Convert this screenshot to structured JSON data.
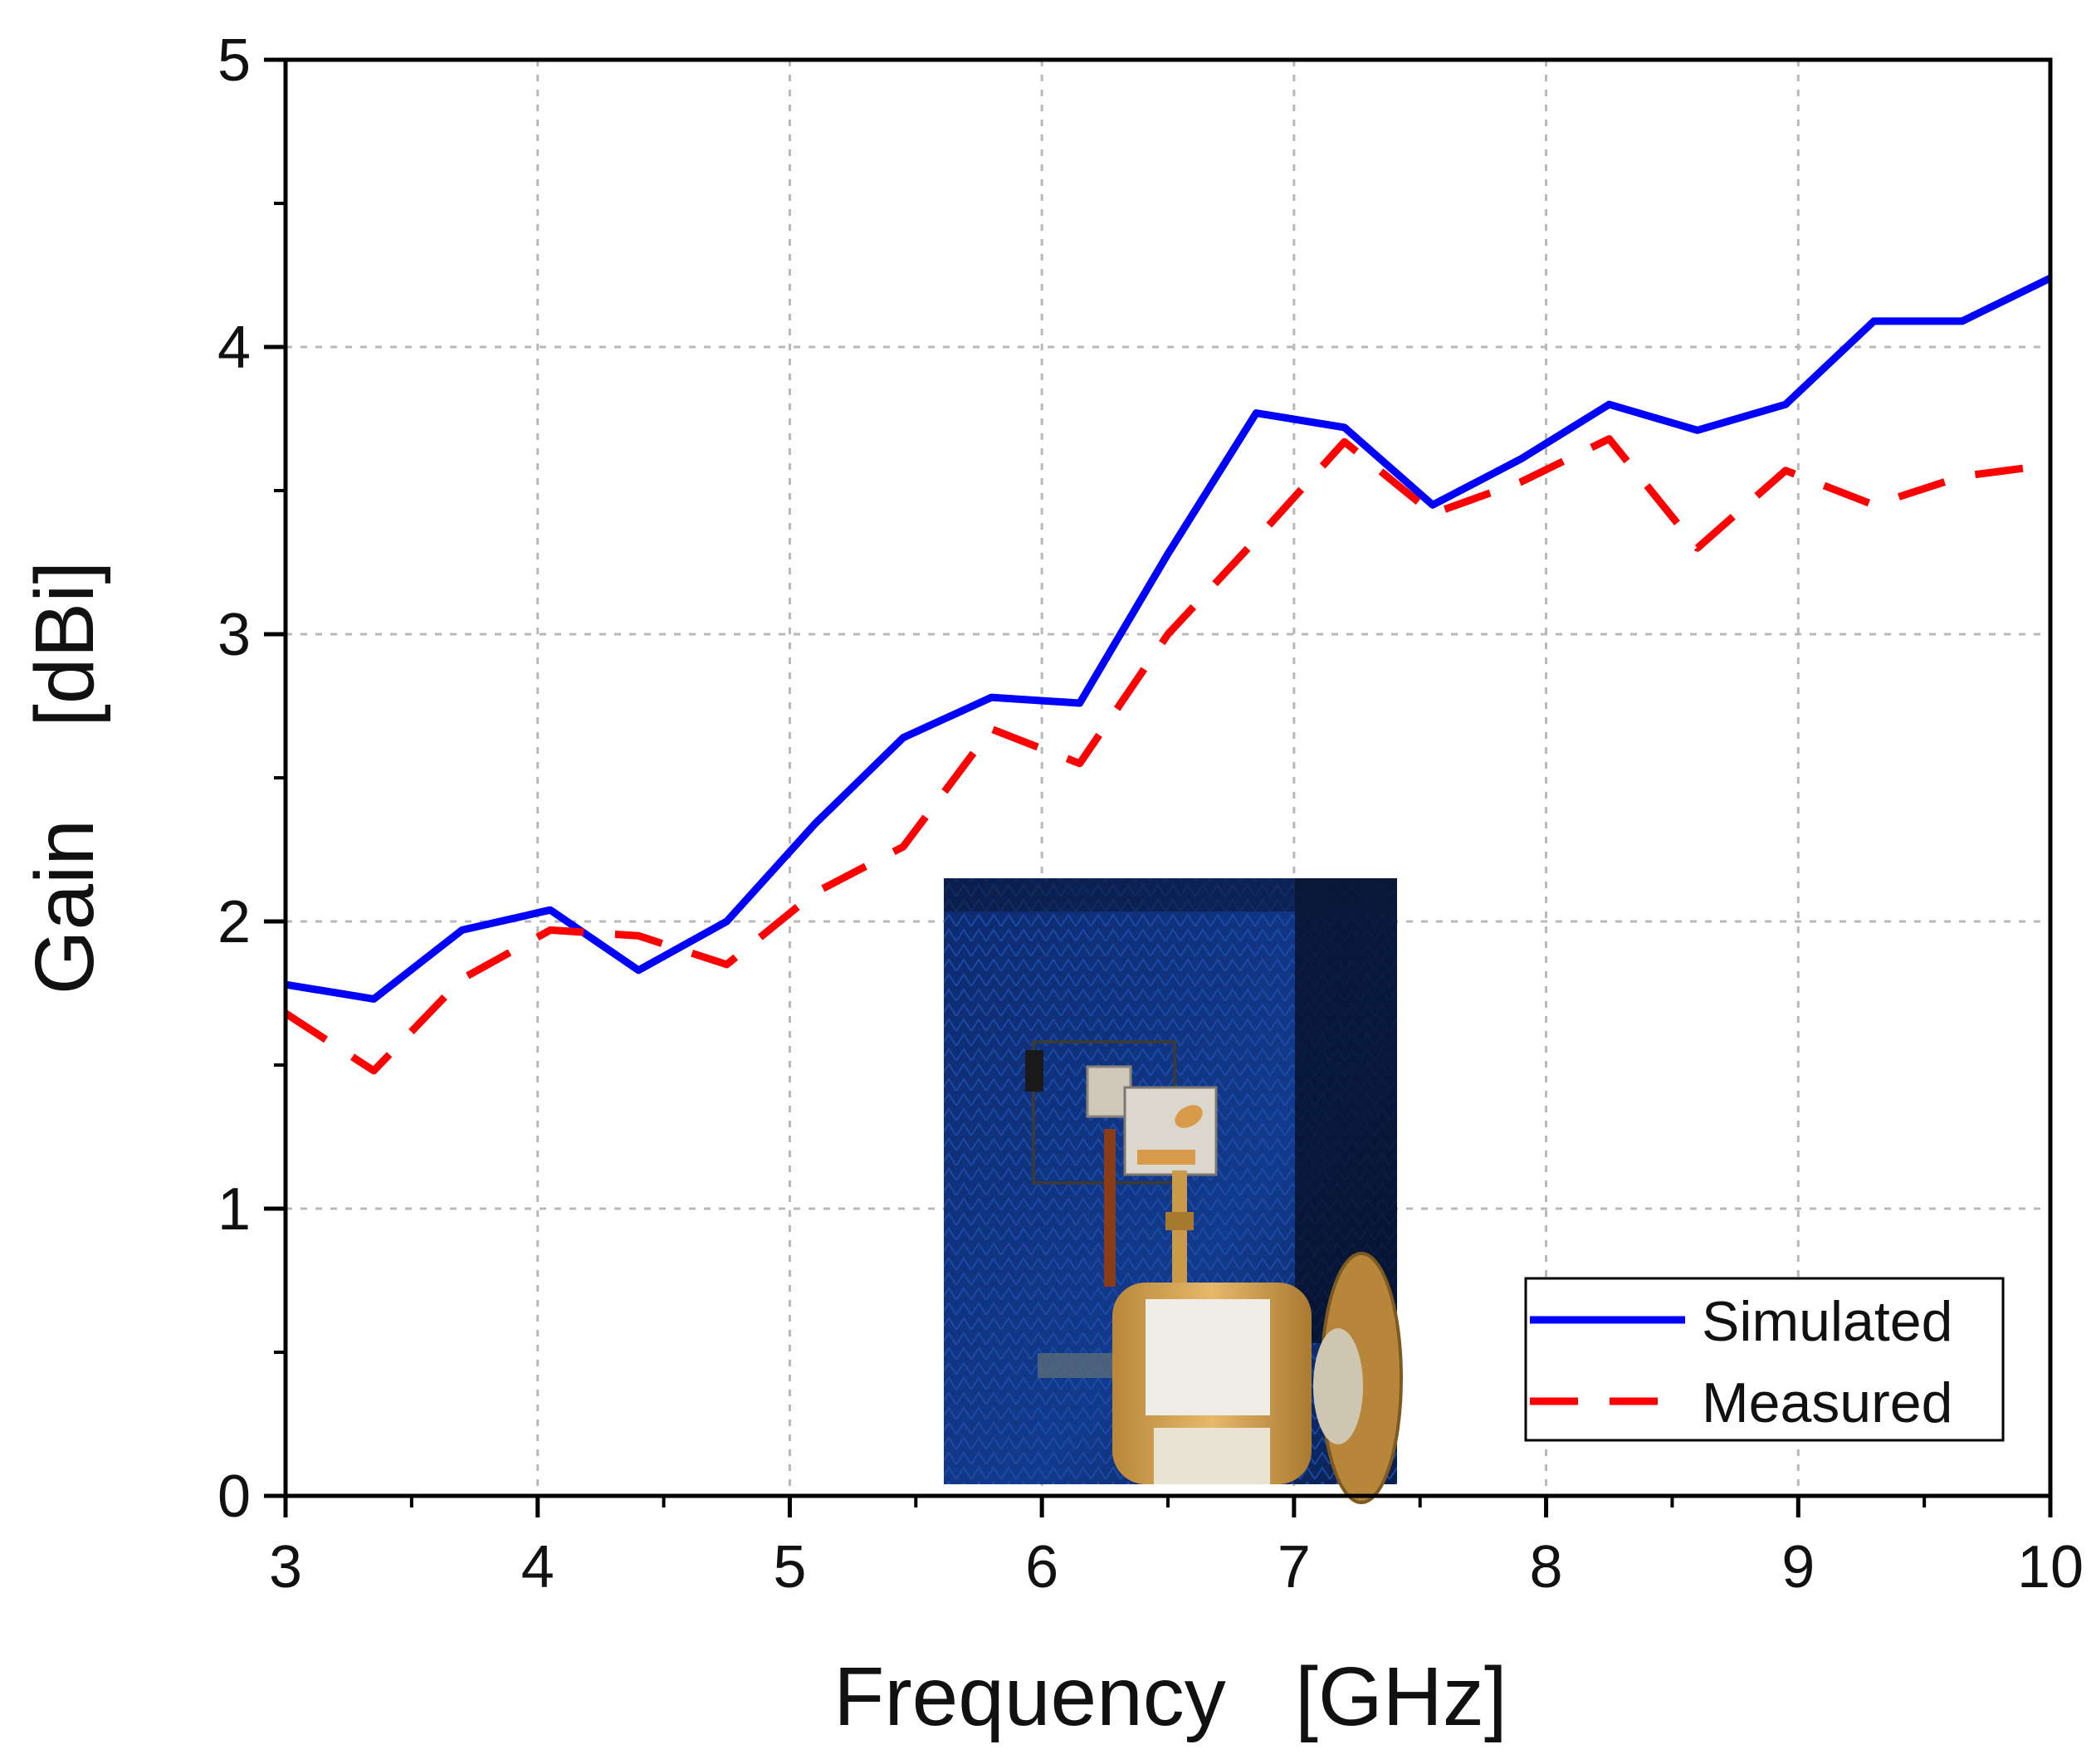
{
  "chart_data": {
    "type": "line",
    "title": "",
    "xlabel": "Frequency   [GHz]",
    "ylabel": "Gain    [dBi]",
    "xlim": [
      3,
      10
    ],
    "ylim": [
      0,
      5
    ],
    "xticks": [
      3,
      4,
      5,
      6,
      7,
      8,
      9,
      10
    ],
    "yticks": [
      0,
      1,
      2,
      3,
      4,
      5
    ],
    "grid": true,
    "legend_position": "bottom-right",
    "inset": "photo of antenna under test in anechoic chamber",
    "series": [
      {
        "name": "Simulated",
        "color": "#0000ff",
        "style": "solid",
        "x": [
          3.0,
          3.35,
          3.7,
          4.05,
          4.4,
          4.75,
          5.1,
          5.45,
          5.8,
          6.15,
          6.5,
          6.85,
          7.2,
          7.55,
          7.9,
          8.25,
          8.6,
          8.95,
          9.3,
          9.65,
          10.0
        ],
        "y": [
          1.78,
          1.73,
          1.97,
          2.04,
          1.83,
          2.0,
          2.34,
          2.64,
          2.78,
          2.76,
          3.28,
          3.77,
          3.72,
          3.45,
          3.61,
          3.8,
          3.71,
          3.8,
          4.09,
          4.09,
          4.24
        ]
      },
      {
        "name": "Measured",
        "color": "#ff0000",
        "style": "dashed",
        "x": [
          3.0,
          3.35,
          3.7,
          4.05,
          4.4,
          4.75,
          5.1,
          5.45,
          5.8,
          6.15,
          6.5,
          6.85,
          7.2,
          7.55,
          7.9,
          8.25,
          8.6,
          8.95,
          9.3,
          9.65,
          10.0
        ],
        "y": [
          1.68,
          1.48,
          1.8,
          1.97,
          1.95,
          1.85,
          2.1,
          2.26,
          2.67,
          2.55,
          3.0,
          3.33,
          3.67,
          3.42,
          3.53,
          3.68,
          3.3,
          3.57,
          3.45,
          3.55,
          3.59
        ]
      }
    ]
  }
}
